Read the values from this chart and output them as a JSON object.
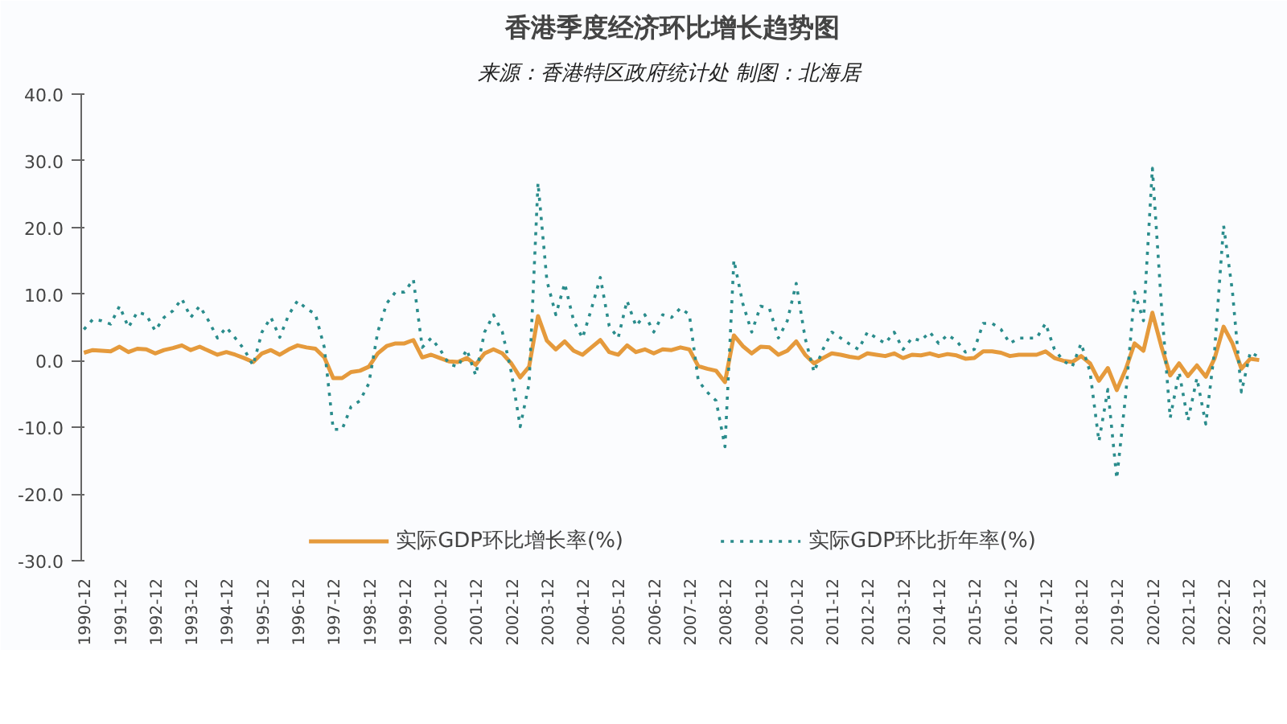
{
  "chart_data": {
    "type": "line",
    "title": "香港季度经济环比增长趋势图",
    "subtitle": "来源：香港特区政府统计处  制图：北海居",
    "categories": [
      "1990-12",
      null,
      null,
      null,
      "1991-12",
      null,
      null,
      null,
      "1992-12",
      null,
      null,
      null,
      "1993-12",
      null,
      null,
      null,
      "1994-12",
      null,
      null,
      null,
      "1995-12",
      null,
      null,
      null,
      "1996-12",
      null,
      null,
      null,
      "1997-12",
      null,
      null,
      null,
      "1998-12",
      null,
      null,
      null,
      "1999-12",
      null,
      null,
      null,
      "2000-12",
      null,
      null,
      null,
      "2001-12",
      null,
      null,
      null,
      "2002-12",
      null,
      null,
      null,
      "2003-12",
      null,
      null,
      null,
      "2004-12",
      null,
      null,
      null,
      "2005-12",
      null,
      null,
      null,
      "2006-12",
      null,
      null,
      null,
      "2007-12",
      null,
      null,
      null,
      "2008-12",
      null,
      null,
      null,
      "2009-12",
      null,
      null,
      null,
      "2010-12",
      null,
      null,
      null,
      "2011-12",
      null,
      null,
      null,
      "2012-12",
      null,
      null,
      null,
      "2013-12",
      null,
      null,
      null,
      "2014-12",
      null,
      null,
      null,
      "2015-12",
      null,
      null,
      null,
      "2016-12",
      null,
      null,
      null,
      "2017-12",
      null,
      null,
      null,
      "2018-12",
      null,
      null,
      null,
      "2019-12",
      null,
      null,
      null,
      "2020-12",
      null,
      null,
      null,
      "2021-12",
      null,
      null,
      null,
      "2022-12",
      null,
      null,
      null,
      "2023-12"
    ],
    "series": [
      {
        "name": "实际GDP环比增长率(%)",
        "color": "#e59a3c",
        "line_style": "solid",
        "values": [
          1.2,
          1.6,
          1.5,
          1.4,
          2.1,
          1.3,
          1.8,
          1.7,
          1.1,
          1.6,
          1.9,
          2.3,
          1.6,
          2.1,
          1.5,
          0.9,
          1.3,
          0.9,
          0.4,
          -0.2,
          1.1,
          1.6,
          0.9,
          1.7,
          2.3,
          2.0,
          1.8,
          0.5,
          -2.6,
          -2.6,
          -1.7,
          -1.5,
          -0.9,
          1.1,
          2.2,
          2.6,
          2.6,
          3.1,
          0.5,
          0.9,
          0.4,
          -0.1,
          -0.2,
          0.4,
          -0.6,
          1.1,
          1.7,
          1.1,
          -0.4,
          -2.5,
          -0.9,
          6.7,
          3.0,
          1.7,
          2.9,
          1.5,
          0.9,
          2.0,
          3.1,
          1.3,
          0.9,
          2.3,
          1.3,
          1.7,
          1.1,
          1.7,
          1.6,
          2.0,
          1.7,
          -0.8,
          -1.2,
          -1.5,
          -3.2,
          3.8,
          2.2,
          1.1,
          2.1,
          2.0,
          0.9,
          1.5,
          2.9,
          0.9,
          -0.4,
          0.4,
          1.1,
          0.9,
          0.6,
          0.4,
          1.1,
          0.9,
          0.7,
          1.1,
          0.4,
          0.9,
          0.8,
          1.1,
          0.7,
          1.0,
          0.8,
          0.3,
          0.4,
          1.4,
          1.4,
          1.2,
          0.7,
          0.9,
          0.9,
          0.9,
          1.4,
          0.4,
          0,
          -0.2,
          0.7,
          -0.4,
          -3.0,
          -1.1,
          -4.4,
          -1.3,
          2.6,
          1.5,
          7.2,
          2.2,
          -2.2,
          -0.4,
          -2.3,
          -0.7,
          -2.4,
          0.4,
          5.1,
          2.6,
          -1.2,
          0.3,
          0.1
        ]
      },
      {
        "name": "实际GDP环比折年率(%)",
        "color": "#2a8c8c",
        "line_style": "dotted",
        "values": [
          4.7,
          6.2,
          6.0,
          5.5,
          8.2,
          5.0,
          7.3,
          6.9,
          4.5,
          6.5,
          7.5,
          9.3,
          6.5,
          8.2,
          6.0,
          3.4,
          5.0,
          3.4,
          1.7,
          -0.7,
          4.3,
          6.5,
          3.5,
          6.9,
          9.0,
          7.8,
          7.0,
          2.0,
          -10.3,
          -10.3,
          -6.9,
          -6.0,
          -3.4,
          4.3,
          8.6,
          10.3,
          10.3,
          12.2,
          2.0,
          3.4,
          1.7,
          -0.5,
          -0.9,
          1.7,
          -2.2,
          4.3,
          6.9,
          4.3,
          -1.7,
          -9.9,
          -3.4,
          26.7,
          12.0,
          6.9,
          11.6,
          6.0,
          3.4,
          7.8,
          12.5,
          5.2,
          3.4,
          9.0,
          5.2,
          6.9,
          4.3,
          6.9,
          6.5,
          7.9,
          6.9,
          -3.0,
          -4.7,
          -6.0,
          -12.9,
          15.1,
          8.6,
          4.3,
          8.2,
          7.8,
          3.4,
          6.0,
          11.6,
          3.4,
          -1.7,
          1.7,
          4.3,
          3.4,
          2.5,
          1.7,
          4.3,
          3.4,
          2.6,
          4.3,
          1.7,
          3.4,
          3.0,
          4.3,
          2.6,
          3.9,
          3.0,
          1.3,
          1.7,
          5.6,
          5.6,
          4.7,
          2.6,
          3.4,
          3.4,
          3.4,
          5.6,
          1.7,
          0,
          -0.9,
          2.6,
          -1.7,
          -12.1,
          -4.3,
          -17.7,
          -5.2,
          10.3,
          6.0,
          28.9,
          8.6,
          -8.6,
          -1.7,
          -9.0,
          -2.6,
          -9.5,
          1.7,
          20.3,
          10.3,
          -4.7,
          1.3,
          0.5
        ]
      }
    ],
    "ylim": [
      -30,
      40
    ],
    "yticks": [
      {
        "value": -30,
        "label": "-30.0"
      },
      {
        "value": -20,
        "label": "-20.0"
      },
      {
        "value": -10,
        "label": "-10.0"
      },
      {
        "value": 0,
        "label": "0.0"
      },
      {
        "value": 10,
        "label": "10.0"
      },
      {
        "value": 20,
        "label": "20.0"
      },
      {
        "value": 30,
        "label": "30.0"
      },
      {
        "value": 40,
        "label": "40.0"
      }
    ],
    "grid": false,
    "legend": "bottom",
    "marker": "none"
  }
}
